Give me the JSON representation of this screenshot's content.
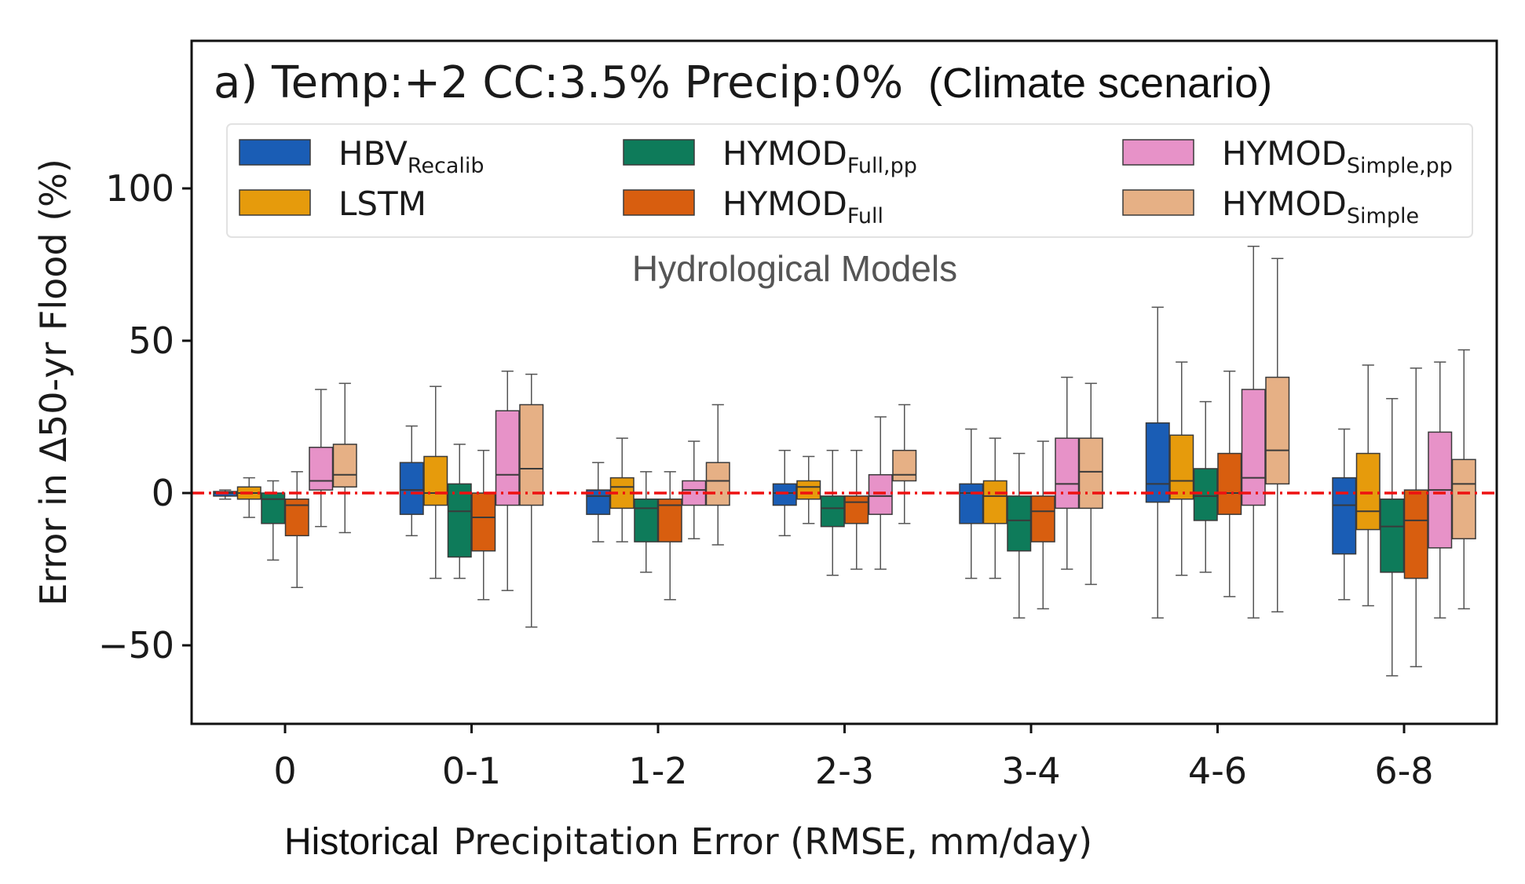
{
  "chart_data": {
    "type": "boxplot",
    "title": "a) Temp:+2 CC:3.5% Precip:0%",
    "title_suffix": "(Climate scenario)",
    "ylabel": "Error in Δ50-yr Flood (%)",
    "xlabel_prefix": "Historical",
    "xlabel": "Precipitation Error (RMSE, mm/day)",
    "annotation": "Hydrological Models",
    "ylim": [
      -75,
      150
    ],
    "yticks": [
      -50,
      0,
      50,
      100
    ],
    "ytick_labels": [
      "−50",
      "0",
      "50",
      "100"
    ],
    "reference_line": 0,
    "reference_color": "#ee1111",
    "categories": [
      "0",
      "0-1",
      "1-2",
      "2-3",
      "3-4",
      "4-6",
      "6-8"
    ],
    "series": [
      {
        "name": "HBV",
        "sub": "Recalib",
        "color": "#1a5db5",
        "boxes": [
          [
            -2,
            -1,
            0,
            0.5,
            1
          ],
          [
            -14,
            -7,
            1,
            10,
            22
          ],
          [
            -16,
            -7,
            -1,
            1,
            10
          ],
          [
            -14,
            -4,
            0,
            3,
            14
          ],
          [
            -28,
            -10,
            0,
            3,
            21
          ],
          [
            -41,
            -3,
            3,
            23,
            61
          ],
          [
            -35,
            -20,
            -4,
            5,
            21
          ]
        ]
      },
      {
        "name": "LSTM",
        "sub": "",
        "color": "#e69b0c",
        "boxes": [
          [
            -8,
            -2,
            0,
            2,
            5
          ],
          [
            -28,
            -4,
            0,
            12,
            35
          ],
          [
            -16,
            -5,
            2,
            5,
            18
          ],
          [
            -10,
            -2,
            2,
            4,
            12
          ],
          [
            -28,
            -10,
            -1,
            4,
            18
          ],
          [
            -27,
            -2,
            4,
            19,
            43
          ],
          [
            -37,
            -12,
            -6,
            13,
            42
          ]
        ]
      },
      {
        "name": "HYMOD",
        "sub": "Full,pp",
        "color": "#0e7b5a",
        "boxes": [
          [
            -22,
            -10,
            -2,
            0,
            4
          ],
          [
            -28,
            -21,
            -6,
            3,
            16
          ],
          [
            -26,
            -16,
            -5,
            -2,
            7
          ],
          [
            -27,
            -11,
            -5,
            -1,
            14
          ],
          [
            -41,
            -19,
            -9,
            -1,
            13
          ],
          [
            -26,
            -9,
            -1,
            8,
            30
          ],
          [
            -60,
            -26,
            -11,
            -2,
            31
          ]
        ]
      },
      {
        "name": "HYMOD",
        "sub": "Full",
        "color": "#d85e0f",
        "boxes": [
          [
            -31,
            -14,
            -4,
            -2,
            7
          ],
          [
            -35,
            -19,
            -8,
            0,
            14
          ],
          [
            -35,
            -16,
            -4,
            -2,
            7
          ],
          [
            -25,
            -10,
            -3,
            -1,
            14
          ],
          [
            -38,
            -16,
            -6,
            -1,
            17
          ],
          [
            -34,
            -7,
            0,
            13,
            40
          ],
          [
            -57,
            -28,
            -9,
            1,
            41
          ]
        ]
      },
      {
        "name": "HYMOD",
        "sub": "Simple,pp",
        "color": "#e792c8",
        "boxes": [
          [
            -11,
            1,
            4,
            15,
            34
          ],
          [
            -32,
            -4,
            6,
            27,
            40
          ],
          [
            -15,
            -4,
            1,
            4,
            17
          ],
          [
            -25,
            -7,
            -1,
            6,
            25
          ],
          [
            -25,
            -5,
            3,
            18,
            38
          ],
          [
            -41,
            -4,
            5,
            34,
            81
          ],
          [
            -41,
            -18,
            1,
            20,
            43
          ]
        ]
      },
      {
        "name": "HYMOD",
        "sub": "Simple",
        "color": "#e6b085",
        "boxes": [
          [
            -13,
            2,
            6,
            16,
            36
          ],
          [
            -44,
            -4,
            8,
            29,
            39
          ],
          [
            -17,
            -4,
            4,
            10,
            29
          ],
          [
            -10,
            4,
            6,
            14,
            29
          ],
          [
            -30,
            -5,
            7,
            18,
            36
          ],
          [
            -39,
            3,
            14,
            38,
            77
          ],
          [
            -38,
            -15,
            3,
            11,
            47
          ]
        ]
      }
    ]
  }
}
